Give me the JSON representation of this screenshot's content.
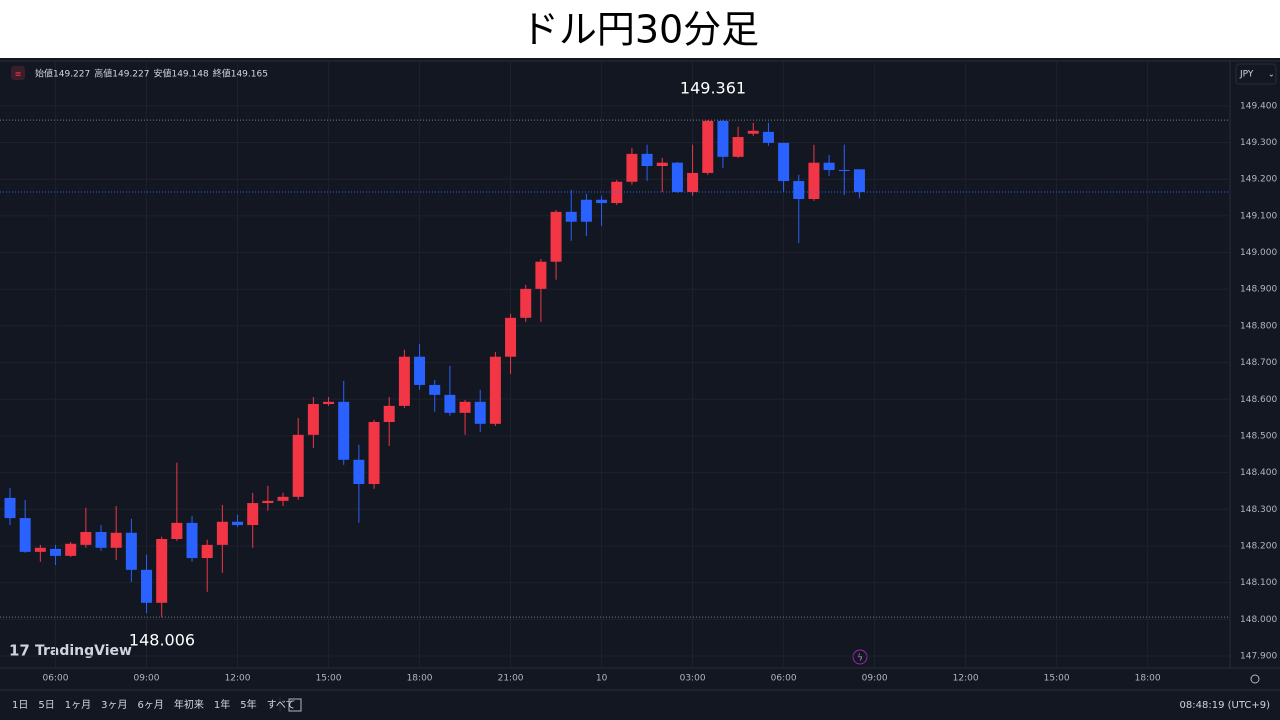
{
  "chart_data": {
    "type": "candlestick",
    "title": "ドル円30分足",
    "currency": "JPY",
    "brand": "TradingView",
    "ohlc_legend": [
      {
        "label": "始値",
        "value": 149.227
      },
      {
        "label": "高値",
        "value": 149.227
      },
      {
        "label": "安値",
        "value": 149.148
      },
      {
        "label": "終値",
        "value": 149.165
      }
    ],
    "up_color": "#f23645",
    "down_color": "#2962ff",
    "open": [
      148.331,
      148.276,
      148.184,
      148.192,
      148.173,
      148.203,
      148.238,
      148.195,
      148.236,
      148.135,
      148.045,
      148.219,
      148.263,
      148.167,
      148.203,
      148.266,
      148.257,
      148.317,
      148.323,
      148.334,
      148.503,
      148.587,
      148.593,
      148.435,
      148.369,
      148.538,
      148.582,
      148.716,
      148.639,
      148.612,
      148.563,
      148.593,
      148.533,
      148.716,
      148.822,
      148.901,
      148.975,
      149.111,
      149.144,
      149.144,
      149.135,
      149.193,
      149.269,
      149.236,
      149.245,
      149.165,
      149.217,
      149.359,
      149.261,
      149.324,
      149.329,
      149.299,
      149.195,
      149.146,
      149.245,
      149.225,
      149.227
    ],
    "high": [
      148.358,
      148.325,
      148.203,
      148.203,
      148.211,
      148.304,
      148.257,
      148.309,
      148.274,
      148.176,
      148.225,
      148.427,
      148.282,
      148.217,
      148.312,
      148.285,
      148.345,
      148.364,
      148.345,
      148.549,
      148.606,
      148.606,
      148.65,
      148.476,
      148.544,
      148.606,
      148.735,
      148.751,
      148.653,
      148.691,
      148.598,
      148.626,
      148.729,
      148.833,
      148.912,
      148.983,
      149.116,
      149.171,
      149.16,
      149.155,
      149.198,
      149.285,
      149.294,
      149.258,
      149.247,
      149.294,
      149.361,
      149.361,
      149.343,
      149.354,
      149.354,
      149.299,
      149.212,
      149.294,
      149.266,
      149.294,
      149.227
    ],
    "low": [
      148.257,
      148.181,
      148.157,
      148.148,
      148.17,
      148.195,
      148.187,
      148.162,
      148.102,
      148.017,
      148.006,
      148.214,
      148.157,
      148.075,
      148.127,
      148.252,
      148.195,
      148.296,
      148.309,
      148.326,
      148.467,
      148.582,
      148.421,
      148.263,
      148.356,
      148.473,
      148.576,
      148.626,
      148.566,
      148.555,
      148.503,
      148.511,
      148.527,
      148.669,
      148.811,
      148.811,
      148.926,
      149.032,
      149.045,
      149.073,
      149.13,
      149.185,
      149.195,
      149.165,
      149.163,
      149.155,
      149.212,
      149.231,
      149.258,
      149.318,
      149.291,
      149.165,
      149.026,
      149.141,
      149.209,
      149.157,
      149.148
    ],
    "close": [
      148.276,
      148.184,
      148.195,
      148.173,
      148.206,
      148.238,
      148.195,
      148.236,
      148.135,
      148.045,
      148.219,
      148.263,
      148.167,
      148.203,
      148.266,
      148.257,
      148.317,
      148.323,
      148.334,
      148.503,
      148.587,
      148.593,
      148.435,
      148.369,
      148.538,
      148.582,
      148.716,
      148.639,
      148.612,
      148.563,
      148.593,
      148.533,
      148.716,
      148.822,
      148.901,
      148.975,
      149.111,
      149.084,
      149.084,
      149.135,
      149.193,
      149.269,
      149.236,
      149.245,
      149.165,
      149.217,
      149.359,
      149.261,
      149.315,
      149.332,
      149.299,
      149.195,
      149.146,
      149.245,
      149.225,
      149.223,
      149.165
    ],
    "high_annotation": 149.361,
    "low_annotation": 148.006,
    "xlim": [
      -0.66,
      80.43
    ],
    "xticks": [
      {
        "value": 3,
        "label": "06:00"
      },
      {
        "value": 9,
        "label": "09:00"
      },
      {
        "value": 15,
        "label": "12:00"
      },
      {
        "value": 21,
        "label": "15:00"
      },
      {
        "value": 27,
        "label": "18:00"
      },
      {
        "value": 33,
        "label": "21:00"
      },
      {
        "value": 39,
        "label": "10"
      },
      {
        "value": 45,
        "label": "03:00"
      },
      {
        "value": 51,
        "label": "06:00"
      },
      {
        "value": 57,
        "label": "09:00"
      },
      {
        "value": 63,
        "label": "12:00"
      },
      {
        "value": 69,
        "label": "15:00"
      },
      {
        "value": 75,
        "label": "18:00"
      }
    ],
    "ylim": [
      147.87,
      149.525
    ],
    "yticks": [
      {
        "value": 149.4,
        "label": "149.400"
      },
      {
        "value": 149.3,
        "label": "149.300"
      },
      {
        "value": 149.2,
        "label": "149.200"
      },
      {
        "value": 149.1,
        "label": "149.100"
      },
      {
        "value": 149.0,
        "label": "149.000"
      },
      {
        "value": 148.9,
        "label": "148.900"
      },
      {
        "value": 148.8,
        "label": "148.800"
      },
      {
        "value": 148.7,
        "label": "148.700"
      },
      {
        "value": 148.6,
        "label": "148.600"
      },
      {
        "value": 148.5,
        "label": "148.500"
      },
      {
        "value": 148.4,
        "label": "148.400"
      },
      {
        "value": 148.3,
        "label": "148.300"
      },
      {
        "value": 148.2,
        "label": "148.200"
      },
      {
        "value": 148.1,
        "label": "148.100"
      },
      {
        "value": 148.0,
        "label": "148.000"
      },
      {
        "value": 147.9,
        "label": "147.900"
      }
    ],
    "grid": true,
    "ranges": [
      "1日",
      "5日",
      "1ヶ月",
      "3ヶ月",
      "6ヶ月",
      "年初来",
      "1年",
      "5年",
      "すべて"
    ],
    "clock": "08:48:19 (UTC+9)"
  }
}
